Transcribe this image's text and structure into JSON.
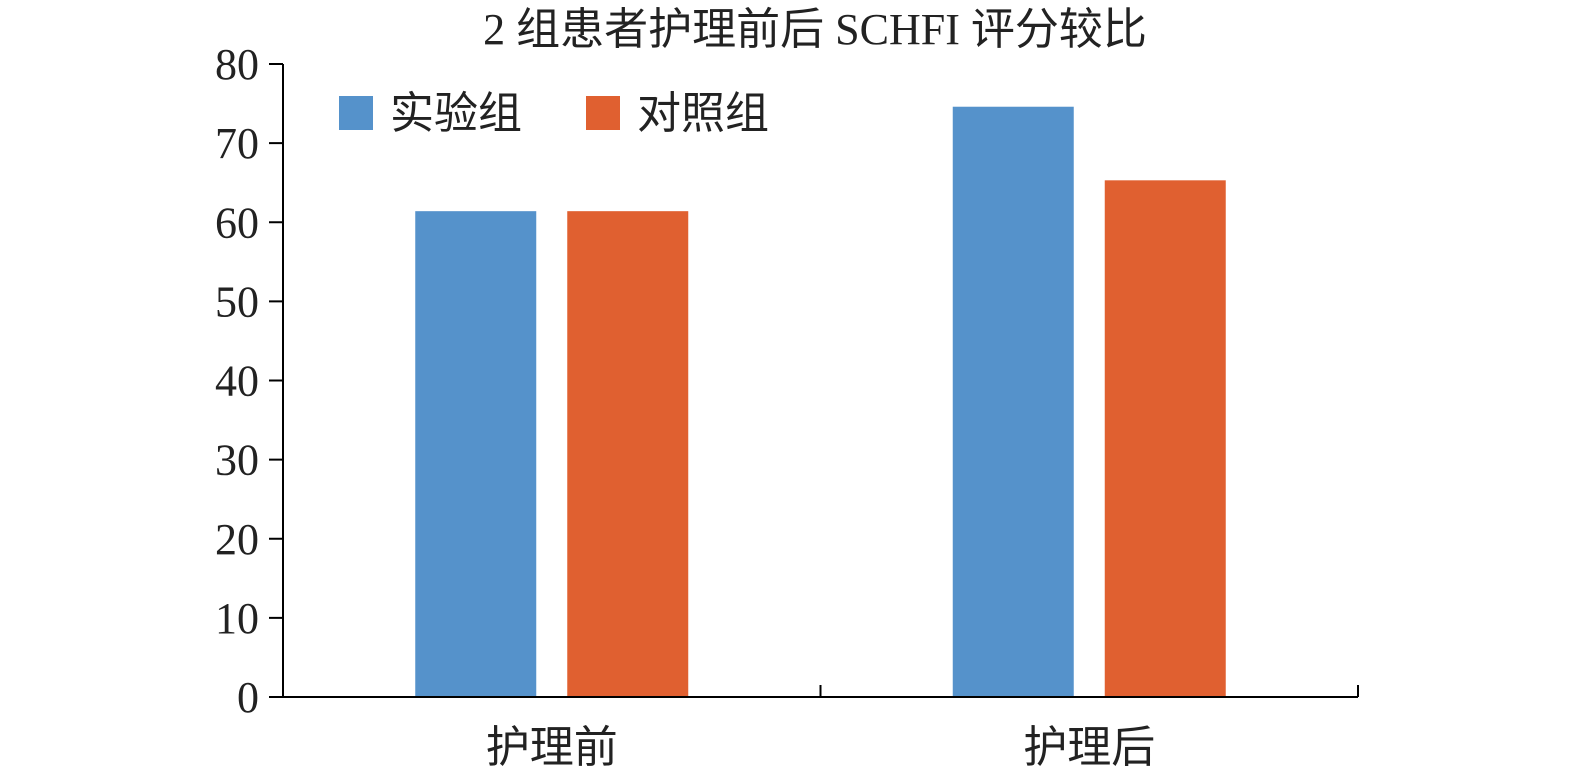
{
  "chart_data": {
    "type": "bar",
    "title": "2 组患者护理前后 SCHFI 评分较比",
    "xlabel": "",
    "ylabel": "",
    "categories": [
      "护理前",
      "护理后"
    ],
    "series": [
      {
        "name": "实验组",
        "color": "#5592CB",
        "values": [
          61.4,
          74.6
        ]
      },
      {
        "name": "对照组",
        "color": "#E06030",
        "values": [
          61.4,
          65.3
        ]
      }
    ],
    "ylim": [
      0,
      80
    ],
    "yticks": [
      "0",
      "10",
      "20",
      "30",
      "40",
      "50",
      "60",
      "70",
      "80"
    ],
    "grid": false,
    "legend": "top-left"
  }
}
